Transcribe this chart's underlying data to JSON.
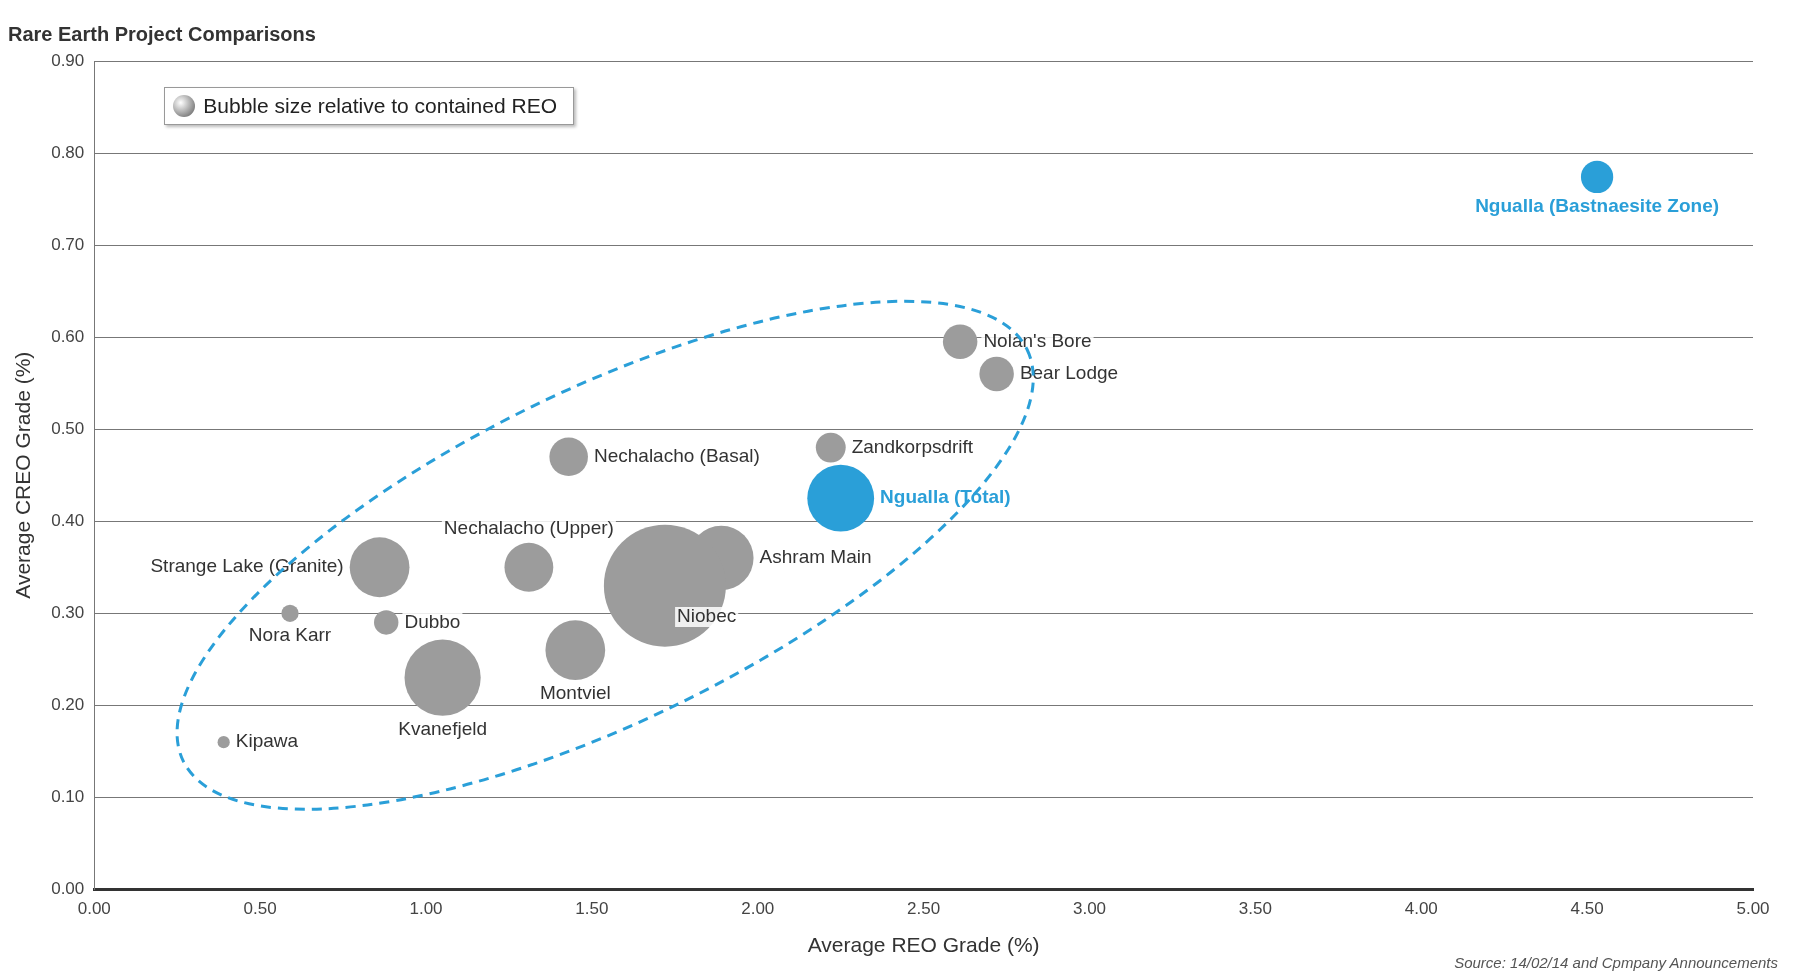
{
  "chart_data": {
    "type": "bubble",
    "title": "Rare Earth Project Comparisons",
    "xlabel": "Average REO Grade (%)",
    "ylabel": "Average CREO Grade (%)",
    "xlim": [
      0,
      5
    ],
    "ylim": [
      0,
      0.9
    ],
    "xticks": [
      {
        "value": 0,
        "label": "0.00"
      },
      {
        "value": 0.5,
        "label": "0.50"
      },
      {
        "value": 1,
        "label": "1.00"
      },
      {
        "value": 1.5,
        "label": "1.50"
      },
      {
        "value": 2,
        "label": "2.00"
      },
      {
        "value": 2.5,
        "label": "2.50"
      },
      {
        "value": 3,
        "label": "3.00"
      },
      {
        "value": 3.5,
        "label": "3.50"
      },
      {
        "value": 4,
        "label": "4.00"
      },
      {
        "value": 4.5,
        "label": "4.50"
      },
      {
        "value": 5,
        "label": "5.00"
      }
    ],
    "yticks": [
      {
        "value": 0,
        "label": "0.00"
      },
      {
        "value": 0.1,
        "label": "0.10"
      },
      {
        "value": 0.2,
        "label": "0.20"
      },
      {
        "value": 0.3,
        "label": "0.30"
      },
      {
        "value": 0.4,
        "label": "0.40"
      },
      {
        "value": 0.5,
        "label": "0.50"
      },
      {
        "value": 0.6,
        "label": "0.60"
      },
      {
        "value": 0.7,
        "label": "0.70"
      },
      {
        "value": 0.8,
        "label": "0.80"
      },
      {
        "value": 0.9,
        "label": "0.90"
      }
    ],
    "grid": "y",
    "legend": false,
    "series": [
      {
        "color": "#9c9c9c",
        "x": [
          2.61,
          2.72,
          2.22,
          1.43,
          0.86,
          1.31,
          1.89,
          1.72,
          0.59,
          0.88,
          1.45,
          1.05,
          0.39
        ],
        "values": [
          0.595,
          0.56,
          0.48,
          0.47,
          0.35,
          0.35,
          0.36,
          0.33,
          0.3,
          0.29,
          0.26,
          0.23,
          0.16
        ],
        "sizes": [
          0.08,
          0.08,
          0.06,
          0.1,
          0.24,
          0.16,
          0.28,
          1,
          0.02,
          0.04,
          0.24,
          0.39,
          0.01
        ]
      },
      {
        "name": "Ngualla (Total)",
        "color": "#2a9fd8",
        "x": [
          2.25
        ],
        "values": [
          0.425
        ],
        "sizes": [
          0.3
        ]
      },
      {
        "name": "Ngualla (Bastnaesite Zone)",
        "color": "#2a9fd8",
        "x": [
          4.53
        ],
        "values": [
          0.774
        ],
        "sizes": [
          0.07
        ]
      }
    ],
    "annotations": [
      "Bubble size relative to contained REO",
      "Source: 14/02/14 and Cpmpany Announcements",
      {
        "text": "Nolan's Bore",
        "x": 2.61,
        "y": 0.595
      },
      {
        "text": "Bear Lodge",
        "x": 2.72,
        "y": 0.56
      },
      {
        "text": "Zandkorpsdrift",
        "x": 2.22,
        "y": 0.48
      },
      {
        "text": "Nechalacho (Basal)",
        "x": 1.43,
        "y": 0.47
      },
      {
        "text": "Strange Lake (Granite)",
        "x": 0.86,
        "y": 0.35
      },
      {
        "text": "Nechalacho (Upper)",
        "x": 1.31,
        "y": 0.35
      },
      {
        "text": "Ashram Main",
        "x": 1.89,
        "y": 0.36
      },
      {
        "text": "Niobec",
        "x": 1.72,
        "y": 0.33
      },
      {
        "text": "Nora Karr",
        "x": 0.59,
        "y": 0.3
      },
      {
        "text": "Dubbo",
        "x": 0.88,
        "y": 0.29
      },
      {
        "text": "Montviel",
        "x": 1.45,
        "y": 0.26
      },
      {
        "text": "Kvanefjeld",
        "x": 1.05,
        "y": 0.23
      },
      {
        "text": "Kipawa",
        "x": 0.39,
        "y": 0.16
      }
    ]
  }
}
